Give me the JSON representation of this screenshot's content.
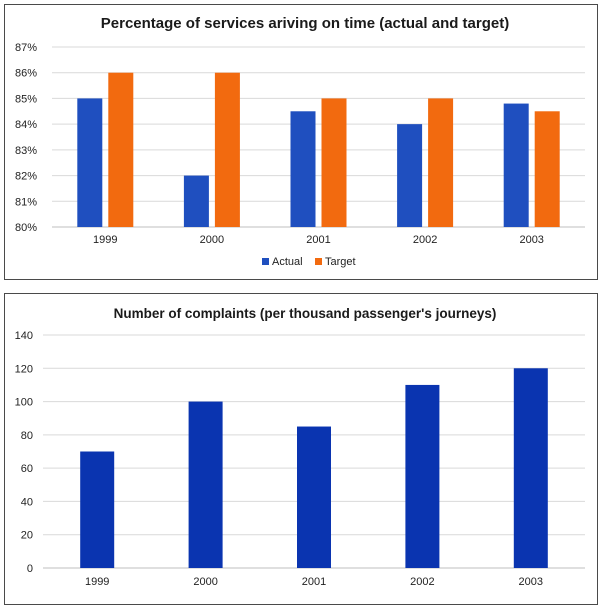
{
  "chart_data": [
    {
      "type": "bar",
      "title": "Percentage of services ariving on time (actual and target)",
      "xlabel": "",
      "ylabel": "",
      "categories": [
        "1999",
        "2000",
        "2001",
        "2002",
        "2003"
      ],
      "series": [
        {
          "name": "Actual",
          "color": "#1f4fbf",
          "values": [
            85,
            82,
            84.5,
            84,
            84.8
          ]
        },
        {
          "name": "Target",
          "color": "#f26a0f",
          "values": [
            86,
            86,
            85,
            85,
            84.5
          ]
        }
      ],
      "ylim": [
        80,
        87
      ],
      "yticks": [
        80,
        81,
        82,
        83,
        84,
        85,
        86,
        87
      ],
      "ytick_labels": [
        "80%",
        "81%",
        "82%",
        "83%",
        "84%",
        "85%",
        "86%",
        "87%"
      ],
      "grid": true,
      "legend": "bottom"
    },
    {
      "type": "bar",
      "title": "Number of complaints (per thousand passenger's journeys)",
      "xlabel": "",
      "ylabel": "",
      "categories": [
        "1999",
        "2000",
        "2001",
        "2002",
        "2003"
      ],
      "series": [
        {
          "name": "Complaints",
          "color": "#0a34b0",
          "values": [
            70,
            100,
            85,
            110,
            120
          ]
        }
      ],
      "ylim": [
        0,
        140
      ],
      "yticks": [
        0,
        20,
        40,
        60,
        80,
        100,
        120,
        140
      ],
      "ytick_labels": [
        "0",
        "20",
        "40",
        "60",
        "80",
        "100",
        "120",
        "140"
      ],
      "grid": true,
      "legend": "none"
    }
  ]
}
